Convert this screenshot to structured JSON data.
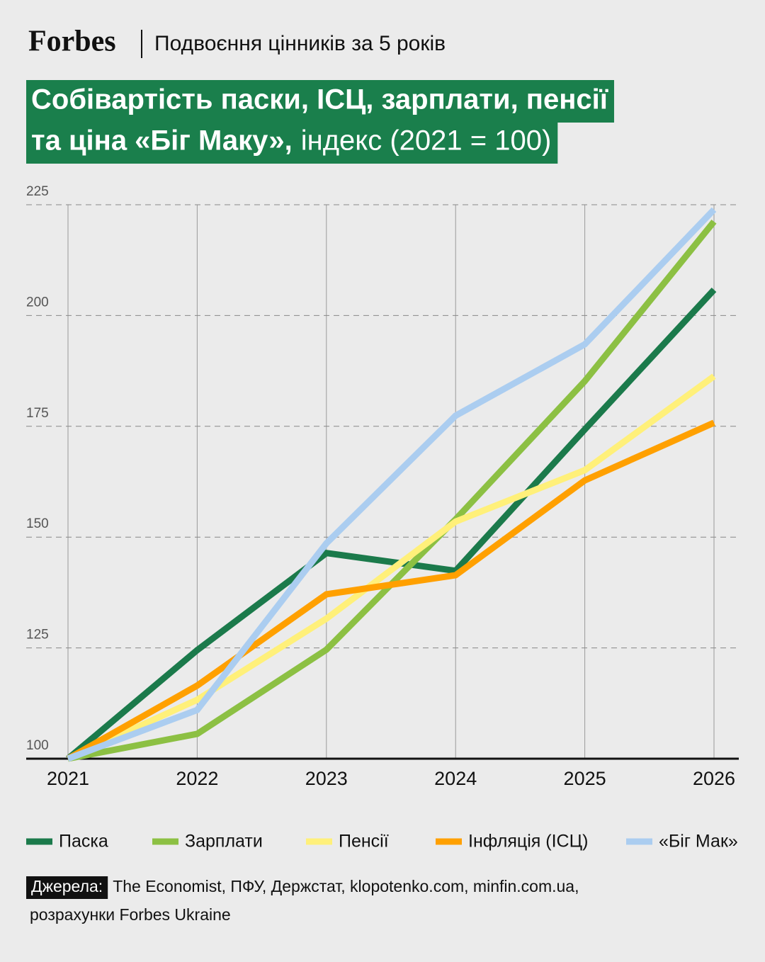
{
  "brand": "Forbes",
  "subtitle": "Подвоєння цінників за 5 років",
  "chart_data": {
    "type": "line",
    "title": [
      "Собівартість паски, ІСЦ, зарплати, пенсії",
      "та ціна «Біг Маку»,"
    ],
    "title_note": "індекс (2021 = 100)",
    "categories": [
      "2021",
      "2022",
      "2023",
      "2024",
      "2025",
      "2026"
    ],
    "series": [
      {
        "name": "Паска",
        "color": "#1b7a4b",
        "values": [
          100,
          124.5,
          146.4,
          142.4,
          174.3,
          205.8
        ]
      },
      {
        "name": "Зарплати",
        "color": "#8cc043",
        "values": [
          100,
          105.6,
          124.6,
          154,
          185.2,
          221.2
        ]
      },
      {
        "name": "Пенсії",
        "color": "#fff07a",
        "values": [
          100,
          113.3,
          131.6,
          153.5,
          165.1,
          186.3
        ]
      },
      {
        "name": "Інфляція (ІСЦ)",
        "color": "#ffa000",
        "values": [
          100,
          116.5,
          137.1,
          141.4,
          162.8,
          175.8
        ]
      },
      {
        "name": "«Біг Мак»",
        "color": "#abcdf0",
        "values": [
          100,
          111,
          148.6,
          177.4,
          193.5,
          223.9
        ]
      }
    ],
    "ylim": [
      100,
      225
    ],
    "yticks": [
      100,
      125,
      150,
      175,
      200,
      225
    ],
    "grid": true
  },
  "source_label": "Джерела:",
  "source": [
    "The Economist, ПФУ, Держстат, klopotenko.com, minfin.com.ua,",
    "розрахунки Forbes Ukraine"
  ]
}
